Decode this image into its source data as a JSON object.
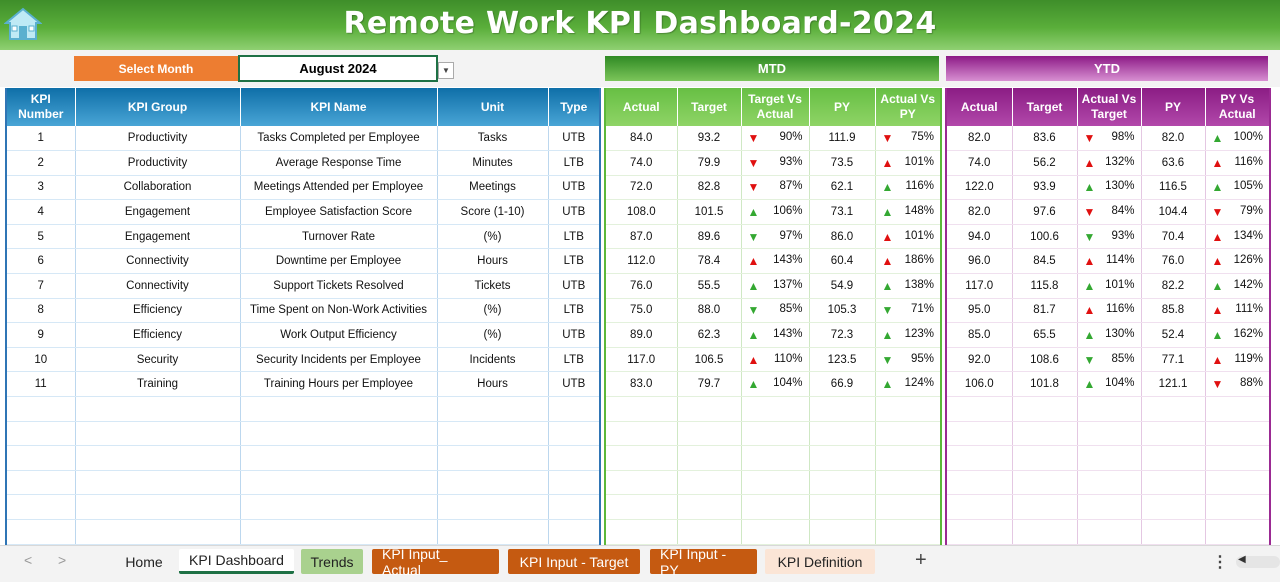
{
  "app": {
    "title": "Remote Work KPI Dashboard-2024",
    "home_icon": "home-icon"
  },
  "filter": {
    "label": "Select Month",
    "value": "August 2024"
  },
  "sections": {
    "mtd": "MTD",
    "ytd": "YTD"
  },
  "kpi_headers": [
    "KPI Number",
    "KPI Group",
    "KPI Name",
    "Unit",
    "Type"
  ],
  "mtd_headers": [
    "Actual",
    "Target",
    "Target Vs Actual",
    "PY",
    "Actual Vs PY"
  ],
  "ytd_headers": [
    "Actual",
    "Target",
    "Actual Vs Target",
    "PY",
    "PY Vs Actual"
  ],
  "rows": [
    {
      "num": "1",
      "group": "Productivity",
      "name": "Tasks Completed per Employee",
      "unit": "Tasks",
      "type": "UTB",
      "mtd": {
        "actual": "84.0",
        "target": "93.2",
        "tva": "90%",
        "tva_dir": "down",
        "py": "111.9",
        "avp": "75%",
        "avp_dir": "down"
      },
      "ytd": {
        "actual": "82.0",
        "target": "83.6",
        "avt": "98%",
        "avt_dir": "down",
        "py": "82.0",
        "pva": "100%",
        "pva_dir": "up"
      }
    },
    {
      "num": "2",
      "group": "Productivity",
      "name": "Average Response Time",
      "unit": "Minutes",
      "type": "LTB",
      "mtd": {
        "actual": "74.0",
        "target": "79.9",
        "tva": "93%",
        "tva_dir": "down",
        "py": "73.5",
        "avp": "101%",
        "avp_dir": "up-red"
      },
      "ytd": {
        "actual": "74.0",
        "target": "56.2",
        "avt": "132%",
        "avt_dir": "up-red",
        "py": "63.6",
        "pva": "116%",
        "pva_dir": "up-red"
      }
    },
    {
      "num": "3",
      "group": "Collaboration",
      "name": "Meetings Attended per Employee",
      "unit": "Meetings",
      "type": "UTB",
      "mtd": {
        "actual": "72.0",
        "target": "82.8",
        "tva": "87%",
        "tva_dir": "down",
        "py": "62.1",
        "avp": "116%",
        "avp_dir": "up"
      },
      "ytd": {
        "actual": "122.0",
        "target": "93.9",
        "avt": "130%",
        "avt_dir": "up",
        "py": "116.5",
        "pva": "105%",
        "pva_dir": "up"
      }
    },
    {
      "num": "4",
      "group": "Engagement",
      "name": "Employee Satisfaction Score",
      "unit": "Score (1-10)",
      "type": "UTB",
      "mtd": {
        "actual": "108.0",
        "target": "101.5",
        "tva": "106%",
        "tva_dir": "up",
        "py": "73.1",
        "avp": "148%",
        "avp_dir": "up"
      },
      "ytd": {
        "actual": "82.0",
        "target": "97.6",
        "avt": "84%",
        "avt_dir": "down",
        "py": "104.4",
        "pva": "79%",
        "pva_dir": "down"
      }
    },
    {
      "num": "5",
      "group": "Engagement",
      "name": "Turnover Rate",
      "unit": "(%)",
      "type": "LTB",
      "mtd": {
        "actual": "87.0",
        "target": "89.6",
        "tva": "97%",
        "tva_dir": "down-green",
        "py": "86.0",
        "avp": "101%",
        "avp_dir": "up-red"
      },
      "ytd": {
        "actual": "94.0",
        "target": "100.6",
        "avt": "93%",
        "avt_dir": "down-green",
        "py": "70.4",
        "pva": "134%",
        "pva_dir": "up-red"
      }
    },
    {
      "num": "6",
      "group": "Connectivity",
      "name": "Downtime per Employee",
      "unit": "Hours",
      "type": "LTB",
      "mtd": {
        "actual": "112.0",
        "target": "78.4",
        "tva": "143%",
        "tva_dir": "up-red",
        "py": "60.4",
        "avp": "186%",
        "avp_dir": "up-red"
      },
      "ytd": {
        "actual": "96.0",
        "target": "84.5",
        "avt": "114%",
        "avt_dir": "up-red",
        "py": "76.0",
        "pva": "126%",
        "pva_dir": "up-red"
      }
    },
    {
      "num": "7",
      "group": "Connectivity",
      "name": "Support Tickets Resolved",
      "unit": "Tickets",
      "type": "UTB",
      "mtd": {
        "actual": "76.0",
        "target": "55.5",
        "tva": "137%",
        "tva_dir": "up",
        "py": "54.9",
        "avp": "138%",
        "avp_dir": "up"
      },
      "ytd": {
        "actual": "117.0",
        "target": "115.8",
        "avt": "101%",
        "avt_dir": "up",
        "py": "82.2",
        "pva": "142%",
        "pva_dir": "up"
      }
    },
    {
      "num": "8",
      "group": "Efficiency",
      "name": "Time Spent on Non-Work Activities",
      "unit": "(%)",
      "type": "LTB",
      "mtd": {
        "actual": "75.0",
        "target": "88.0",
        "tva": "85%",
        "tva_dir": "down-green",
        "py": "105.3",
        "avp": "71%",
        "avp_dir": "down-green"
      },
      "ytd": {
        "actual": "95.0",
        "target": "81.7",
        "avt": "116%",
        "avt_dir": "up-red",
        "py": "85.8",
        "pva": "111%",
        "pva_dir": "up-red"
      }
    },
    {
      "num": "9",
      "group": "Efficiency",
      "name": "Work Output Efficiency",
      "unit": "(%)",
      "type": "UTB",
      "mtd": {
        "actual": "89.0",
        "target": "62.3",
        "tva": "143%",
        "tva_dir": "up",
        "py": "72.3",
        "avp": "123%",
        "avp_dir": "up"
      },
      "ytd": {
        "actual": "85.0",
        "target": "65.5",
        "avt": "130%",
        "avt_dir": "up",
        "py": "52.4",
        "pva": "162%",
        "pva_dir": "up"
      }
    },
    {
      "num": "10",
      "group": "Security",
      "name": "Security Incidents per Employee",
      "unit": "Incidents",
      "type": "LTB",
      "mtd": {
        "actual": "117.0",
        "target": "106.5",
        "tva": "110%",
        "tva_dir": "up-red",
        "py": "123.5",
        "avp": "95%",
        "avp_dir": "down-green"
      },
      "ytd": {
        "actual": "92.0",
        "target": "108.6",
        "avt": "85%",
        "avt_dir": "down-green",
        "py": "77.1",
        "pva": "119%",
        "pva_dir": "up-red"
      }
    },
    {
      "num": "11",
      "group": "Training",
      "name": "Training Hours per Employee",
      "unit": "Hours",
      "type": "UTB",
      "mtd": {
        "actual": "83.0",
        "target": "79.7",
        "tva": "104%",
        "tva_dir": "up",
        "py": "66.9",
        "avp": "124%",
        "avp_dir": "up"
      },
      "ytd": {
        "actual": "106.0",
        "target": "101.8",
        "avt": "104%",
        "avt_dir": "up",
        "py": "121.1",
        "pva": "88%",
        "pva_dir": "down"
      }
    }
  ],
  "empty_rows": 6,
  "colors": {
    "up_green": "#34a832",
    "down_red": "#e01010",
    "kpi_header": "#1f7fb8",
    "mtd_header": "#6cc04a",
    "ytd_header": "#9b2a93",
    "select_label": "#ed7d31",
    "input_tab": "#c55a11"
  },
  "sheet_tabs": {
    "home": "Home",
    "dashboard": "KPI Dashboard",
    "trends": "Trends",
    "input_actual": "KPI Input_ Actual",
    "input_target": "KPI Input - Target",
    "input_py": "KPI Input - PY",
    "definition": "KPI Definition",
    "add": "+",
    "more": "⋮"
  }
}
